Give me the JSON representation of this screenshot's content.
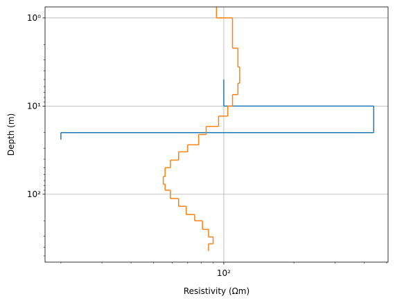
{
  "chart_data": {
    "type": "step",
    "x_label": "Resistivity (Ωm)",
    "y_label": "Depth (m)",
    "xscale": "log",
    "yscale": "log",
    "y_inverted": true,
    "grid": true,
    "xlim": [
      17.1,
      507
    ],
    "ylim": [
      0.75,
      589
    ],
    "xticks": [
      {
        "value": 100,
        "label": "10²"
      }
    ],
    "yticks": [
      {
        "value": 1,
        "label": "10⁰"
      },
      {
        "value": 10,
        "label": "10¹"
      },
      {
        "value": 100,
        "label": "10²"
      }
    ],
    "xminorticks": [
      20,
      30,
      40,
      50,
      60,
      70,
      80,
      90,
      200,
      300,
      400,
      500
    ],
    "yminorticks": [
      2,
      3,
      4,
      5,
      6,
      7,
      8,
      9,
      20,
      30,
      40,
      50,
      60,
      70,
      80,
      90,
      200,
      300,
      400,
      500
    ],
    "series": [
      {
        "color": "#1f77b4",
        "depths": [
          5,
          10,
          20,
          24
        ],
        "values": [
          100,
          440,
          20
        ]
      },
      {
        "color": "#ff7f0e",
        "depths": [
          0.75,
          1,
          2.2,
          3.6,
          5.5,
          7.4,
          10,
          13,
          17,
          21,
          27.5,
          33,
          41,
          50,
          63,
          77,
          90,
          112,
          137,
          170,
          200,
          250,
          305,
          365,
          440
        ],
        "values": [
          93,
          109,
          115,
          117,
          115,
          109,
          104,
          95,
          84,
          78,
          70,
          64,
          59,
          56,
          55,
          56,
          59,
          64,
          69,
          75,
          81,
          86,
          90,
          86
        ]
      }
    ]
  }
}
